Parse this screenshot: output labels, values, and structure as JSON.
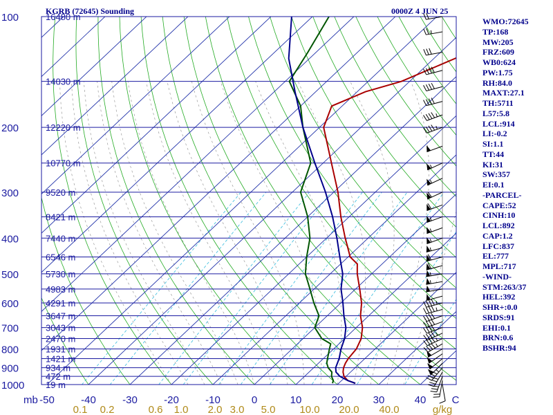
{
  "header": {
    "station": "KGRB (72645) Sounding",
    "time": "0000Z  4 JUN 25"
  },
  "indices": [
    "WMO:72645",
    "TP:168",
    "MW:205",
    "FRZ:609",
    "WB0:624",
    "PW:1.75",
    "RH:84.0",
    "MAXT:27.1",
    "TH:5711",
    "L57:5.8",
    "LCL:914",
    "LI:-0.2",
    "SI:1.1",
    "TT:44",
    "KI:31",
    "SW:357",
    "EI:0.1",
    "-PARCEL-",
    "CAPE:52",
    "CINH:10",
    "LCL:892",
    "CAP:1.2",
    "LFC:837",
    "EL:777",
    "MPL:717",
    "-WIND-",
    "STM:263/37",
    "HEL:392",
    "SHR+:0.0",
    "SRDS:91",
    "EHI:0.1",
    "BRN:0.6",
    "BSHR:94"
  ],
  "chart_data": {
    "type": "line",
    "y_scale": "log",
    "ylim": [
      1000,
      100
    ],
    "xlim": [
      -50,
      50
    ],
    "pressure_ticks": [
      "100",
      "200",
      "300",
      "400",
      "500",
      "600",
      "700",
      "800",
      "900",
      "1000"
    ],
    "y_unit": "mb",
    "temp_ticks": [
      "-50",
      "-40",
      "-30",
      "-20",
      "-10",
      "0",
      "10",
      "20",
      "30",
      "40"
    ],
    "temp_unit": "C",
    "mixing_ratio_ticks": [
      "0.1",
      "0.2",
      "0.6",
      "1.0",
      "2.0",
      "3.0",
      "5.0",
      "10.0",
      "20.0",
      "40.0"
    ],
    "mixing_ratio_unit": "g/kg",
    "height_labels": [
      {
        "p": 100,
        "label": "16480 m"
      },
      {
        "p": 150,
        "label": "14030 m"
      },
      {
        "p": 200,
        "label": "12220 m"
      },
      {
        "p": 250,
        "label": "10770 m"
      },
      {
        "p": 300,
        "label": "9520 m"
      },
      {
        "p": 350,
        "label": "8421 m"
      },
      {
        "p": 400,
        "label": "7440 m"
      },
      {
        "p": 450,
        "label": "6546 m"
      },
      {
        "p": 500,
        "label": "5730 m"
      },
      {
        "p": 550,
        "label": "4983 m"
      },
      {
        "p": 600,
        "label": "4291 m"
      },
      {
        "p": 650,
        "label": "3647 m"
      },
      {
        "p": 700,
        "label": "3043 m"
      },
      {
        "p": 750,
        "label": "2470 m"
      },
      {
        "p": 800,
        "label": "1931 m"
      },
      {
        "p": 850,
        "label": "1421 m"
      },
      {
        "p": 900,
        "label": "934 m"
      },
      {
        "p": 950,
        "label": "472 m"
      },
      {
        "p": 1000,
        "label": "19 m"
      }
    ],
    "series": [
      {
        "color": "#aa0000",
        "points": [
          [
            992,
            24
          ],
          [
            975,
            21.5
          ],
          [
            950,
            19.5
          ],
          [
            925,
            18.2
          ],
          [
            900,
            17.2
          ],
          [
            875,
            16.5
          ],
          [
            850,
            16
          ],
          [
            800,
            15.5
          ],
          [
            750,
            14
          ],
          [
            700,
            11.5
          ],
          [
            650,
            8
          ],
          [
            600,
            5
          ],
          [
            550,
            1
          ],
          [
            500,
            -3.5
          ],
          [
            470,
            -6
          ],
          [
            450,
            -9.5
          ],
          [
            420,
            -13
          ],
          [
            400,
            -15.5
          ],
          [
            350,
            -22
          ],
          [
            300,
            -29
          ],
          [
            250,
            -38
          ],
          [
            200,
            -49
          ],
          [
            175,
            -52.5
          ],
          [
            160,
            -48
          ],
          [
            150,
            -42
          ],
          [
            125,
            -33
          ],
          [
            100,
            -27
          ]
        ]
      },
      {
        "color": "#005500",
        "points": [
          [
            992,
            18.5
          ],
          [
            975,
            18
          ],
          [
            950,
            16.5
          ],
          [
            925,
            15.5
          ],
          [
            900,
            13.5
          ],
          [
            875,
            12
          ],
          [
            850,
            11
          ],
          [
            800,
            9
          ],
          [
            775,
            8
          ],
          [
            750,
            4.5
          ],
          [
            700,
            0
          ],
          [
            650,
            -2
          ],
          [
            600,
            -6.5
          ],
          [
            550,
            -11
          ],
          [
            500,
            -16
          ],
          [
            450,
            -20
          ],
          [
            400,
            -24
          ],
          [
            350,
            -30
          ],
          [
            300,
            -38
          ],
          [
            250,
            -43
          ],
          [
            200,
            -54
          ],
          [
            175,
            -60
          ],
          [
            150,
            -69
          ],
          [
            125,
            -72
          ],
          [
            100,
            -76
          ]
        ]
      },
      {
        "color": "#00008b",
        "points": [
          [
            992,
            24
          ],
          [
            975,
            21.5
          ],
          [
            950,
            18.5
          ],
          [
            925,
            16.5
          ],
          [
            900,
            15.3
          ],
          [
            850,
            13.8
          ],
          [
            800,
            11.8
          ],
          [
            750,
            10
          ],
          [
            700,
            7.5
          ],
          [
            650,
            4
          ],
          [
            600,
            0.5
          ],
          [
            550,
            -3.5
          ],
          [
            500,
            -7
          ],
          [
            450,
            -12
          ],
          [
            400,
            -17.5
          ],
          [
            350,
            -24
          ],
          [
            300,
            -32
          ],
          [
            250,
            -42
          ],
          [
            200,
            -54
          ],
          [
            160,
            -65
          ],
          [
            130,
            -75
          ],
          [
            100,
            -85
          ]
        ]
      }
    ],
    "wind_barbs": [
      {
        "p": 1000,
        "dir": 170,
        "kt": 10
      },
      {
        "p": 975,
        "dir": 190,
        "kt": 20
      },
      {
        "p": 950,
        "dir": 200,
        "kt": 30
      },
      {
        "p": 925,
        "dir": 210,
        "kt": 40
      },
      {
        "p": 900,
        "dir": 220,
        "kt": 45
      },
      {
        "p": 875,
        "dir": 225,
        "kt": 50
      },
      {
        "p": 850,
        "dir": 230,
        "kt": 50
      },
      {
        "p": 825,
        "dir": 235,
        "kt": 50
      },
      {
        "p": 800,
        "dir": 240,
        "kt": 50
      },
      {
        "p": 775,
        "dir": 240,
        "kt": 45
      },
      {
        "p": 750,
        "dir": 245,
        "kt": 45
      },
      {
        "p": 725,
        "dir": 245,
        "kt": 45
      },
      {
        "p": 700,
        "dir": 250,
        "kt": 40
      },
      {
        "p": 675,
        "dir": 250,
        "kt": 40
      },
      {
        "p": 650,
        "dir": 250,
        "kt": 40
      },
      {
        "p": 625,
        "dir": 255,
        "kt": 45
      },
      {
        "p": 600,
        "dir": 255,
        "kt": 45
      },
      {
        "p": 575,
        "dir": 255,
        "kt": 50
      },
      {
        "p": 550,
        "dir": 260,
        "kt": 50
      },
      {
        "p": 525,
        "dir": 260,
        "kt": 55
      },
      {
        "p": 500,
        "dir": 260,
        "kt": 55
      },
      {
        "p": 475,
        "dir": 255,
        "kt": 60
      },
      {
        "p": 450,
        "dir": 255,
        "kt": 60
      },
      {
        "p": 425,
        "dir": 255,
        "kt": 55
      },
      {
        "p": 400,
        "dir": 250,
        "kt": 55
      },
      {
        "p": 375,
        "dir": 250,
        "kt": 55
      },
      {
        "p": 350,
        "dir": 250,
        "kt": 55
      },
      {
        "p": 325,
        "dir": 250,
        "kt": 60
      },
      {
        "p": 300,
        "dir": 245,
        "kt": 60
      },
      {
        "p": 275,
        "dir": 245,
        "kt": 55
      },
      {
        "p": 250,
        "dir": 245,
        "kt": 55
      },
      {
        "p": 225,
        "dir": 250,
        "kt": 50
      },
      {
        "p": 200,
        "dir": 250,
        "kt": 45
      },
      {
        "p": 185,
        "dir": 250,
        "kt": 45
      },
      {
        "p": 170,
        "dir": 255,
        "kt": 40
      },
      {
        "p": 155,
        "dir": 255,
        "kt": 40
      },
      {
        "p": 140,
        "dir": 255,
        "kt": 40
      },
      {
        "p": 125,
        "dir": 260,
        "kt": 30
      },
      {
        "p": 110,
        "dir": 260,
        "kt": 25
      },
      {
        "p": 100,
        "dir": 260,
        "kt": 20
      }
    ]
  }
}
